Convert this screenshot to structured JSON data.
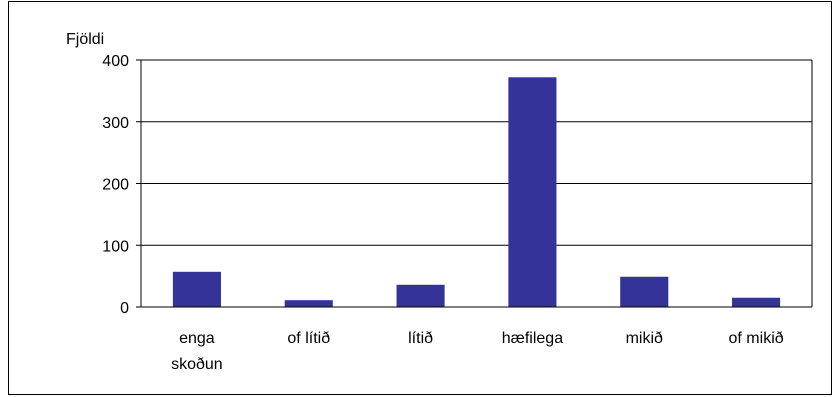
{
  "chart_data": {
    "type": "bar",
    "ylabel": "Fjöldi",
    "categories": [
      [
        "enga",
        "skoðun"
      ],
      [
        "of lítið"
      ],
      [
        "lítið"
      ],
      [
        "hæfilega"
      ],
      [
        "mikið"
      ],
      [
        "of mikið"
      ]
    ],
    "category_names": [
      "enga skoðun",
      "of lítið",
      "lítið",
      "hæfilega",
      "mikið",
      "of mikið"
    ],
    "values": [
      57,
      11,
      36,
      372,
      49,
      15
    ],
    "ylim": [
      0,
      400
    ],
    "yticks": [
      0,
      100,
      200,
      300,
      400
    ],
    "ytick_labels": [
      "0",
      "100",
      "200",
      "300",
      "400"
    ],
    "grid": true,
    "legend": false,
    "colors": {
      "bar": "#333399",
      "grid": "#000000",
      "axis": "#000000"
    }
  }
}
